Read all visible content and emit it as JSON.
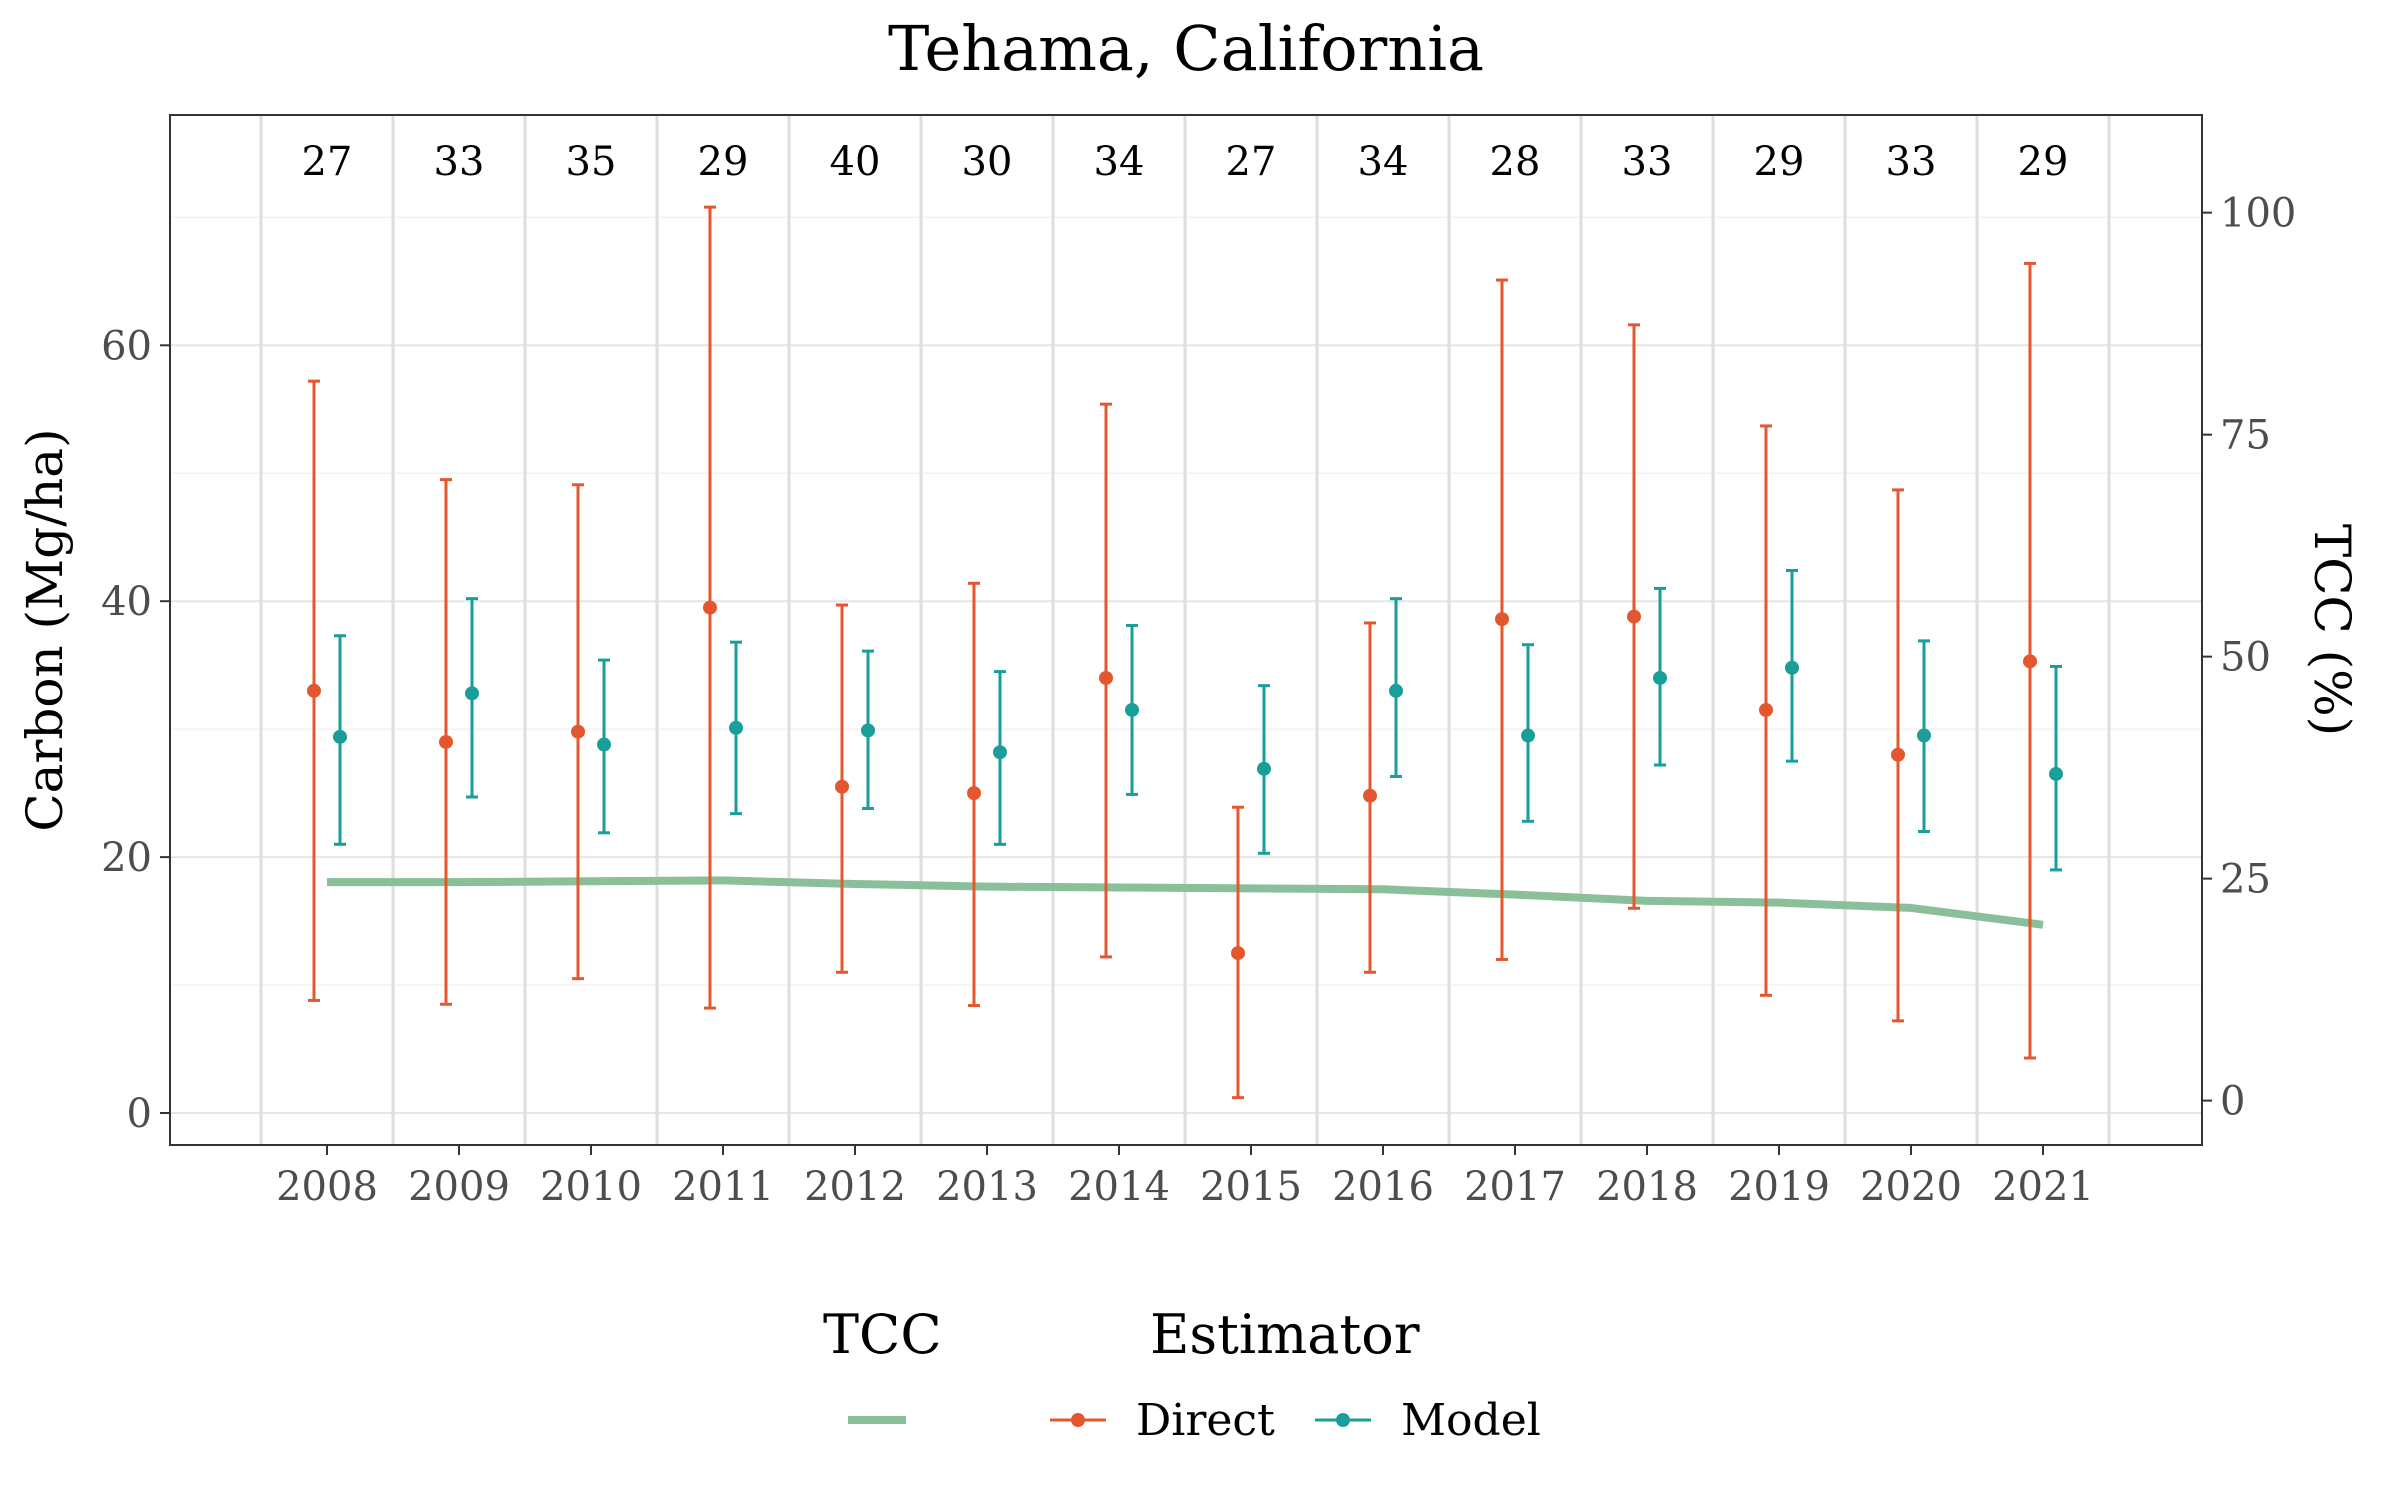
{
  "chart_data": {
    "type": "line",
    "title": "Tehama, California",
    "xlabel": "",
    "ylabel": "Carbon (Mg/ha)",
    "y2label": "TCC (%)",
    "ylim": [
      -2.5,
      78
    ],
    "y2lim": [
      -5,
      111
    ],
    "yticks": [
      0,
      20,
      40,
      60
    ],
    "y2ticks": [
      0,
      25,
      50,
      75,
      100
    ],
    "grid": true,
    "legend_position": "bottom",
    "categories": [
      "2008",
      "2009",
      "2010",
      "2011",
      "2012",
      "2013",
      "2014",
      "2015",
      "2016",
      "2017",
      "2018",
      "2019",
      "2020",
      "2021"
    ],
    "sample_counts": [
      "27",
      "33",
      "35",
      "29",
      "40",
      "30",
      "34",
      "27",
      "34",
      "28",
      "33",
      "29",
      "33",
      "29"
    ],
    "series": [
      {
        "name": "Direct",
        "color": "#E4572E",
        "estimate": [
          33.0,
          29.0,
          29.8,
          39.5,
          25.5,
          25.0,
          34.0,
          12.5,
          24.8,
          38.6,
          38.8,
          31.5,
          28.0,
          35.3
        ],
        "lower": [
          8.8,
          8.5,
          10.5,
          8.2,
          11.0,
          8.4,
          12.2,
          1.2,
          11.0,
          12.0,
          16.0,
          9.2,
          7.2,
          4.3
        ],
        "upper": [
          57.2,
          49.5,
          49.1,
          70.8,
          39.7,
          41.4,
          55.4,
          23.9,
          38.3,
          65.1,
          61.6,
          53.7,
          48.7,
          66.4
        ]
      },
      {
        "name": "Model",
        "color": "#1A9E9A",
        "estimate": [
          29.4,
          32.8,
          28.8,
          30.1,
          29.9,
          28.2,
          31.5,
          26.9,
          33.0,
          29.5,
          34.0,
          34.8,
          29.5,
          26.5
        ],
        "lower": [
          21.0,
          24.7,
          21.9,
          23.4,
          23.8,
          21.0,
          24.9,
          20.3,
          26.3,
          22.8,
          27.2,
          27.5,
          22.0,
          19.0
        ],
        "upper": [
          37.3,
          40.2,
          35.4,
          36.8,
          36.1,
          34.5,
          38.1,
          33.4,
          40.2,
          36.6,
          41.0,
          42.4,
          36.9,
          34.9
        ]
      },
      {
        "name": "TCC",
        "color": "#8BBF9A",
        "axis": "right",
        "values": [
          24.6,
          24.6,
          24.7,
          24.8,
          24.4,
          24.1,
          24.0,
          23.9,
          23.8,
          23.2,
          22.5,
          22.3,
          21.7,
          19.8
        ]
      }
    ],
    "legend": {
      "tcc_title": "TCC",
      "estimator_title": "Estimator",
      "entries": [
        "Direct",
        "Model"
      ]
    }
  }
}
